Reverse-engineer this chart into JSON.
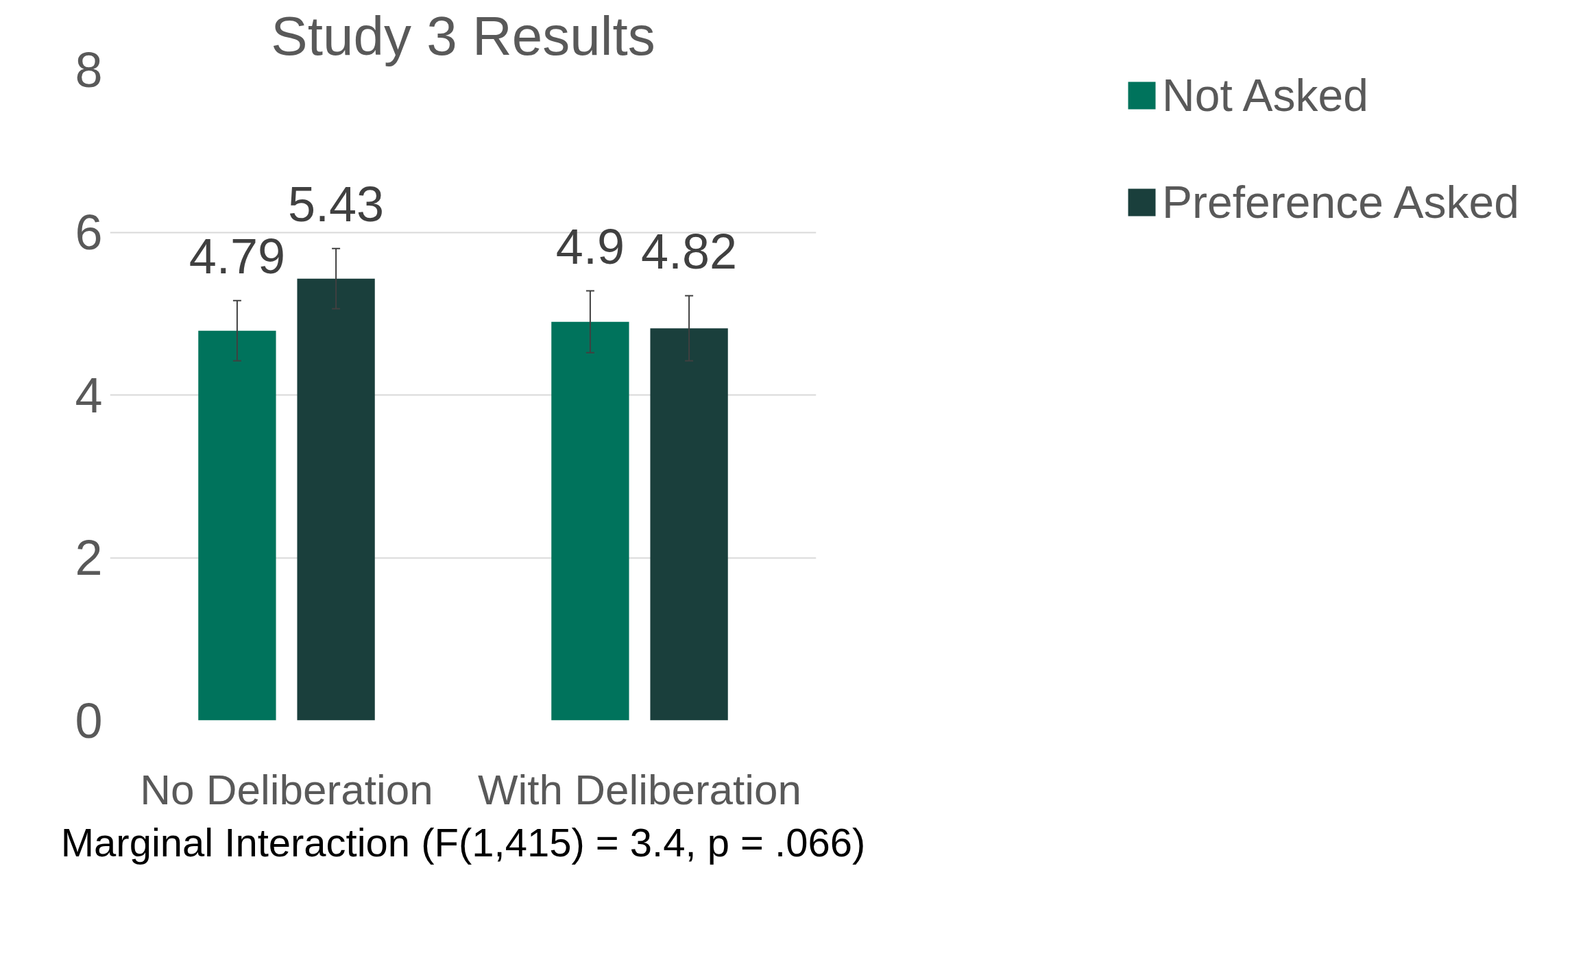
{
  "chart_data": {
    "type": "bar",
    "title": "Study 3 Results",
    "categories": [
      "No Deliberation",
      "With Deliberation"
    ],
    "series": [
      {
        "name": "Not Asked",
        "color": "#00735c",
        "values": [
          4.79,
          4.9
        ],
        "errors": [
          0.37,
          0.38
        ]
      },
      {
        "name": "Preference Asked",
        "color": "#1a3f3c",
        "values": [
          5.43,
          4.82
        ],
        "errors": [
          0.37,
          0.4
        ]
      }
    ],
    "ylim": [
      0,
      8
    ],
    "yticks": [
      0,
      2,
      4,
      6,
      8
    ],
    "grid": "y",
    "legend": "right",
    "data_labels": true,
    "annotations": [
      "Marginal Interaction (F(1,415) = 3.4, p = .066)"
    ]
  }
}
